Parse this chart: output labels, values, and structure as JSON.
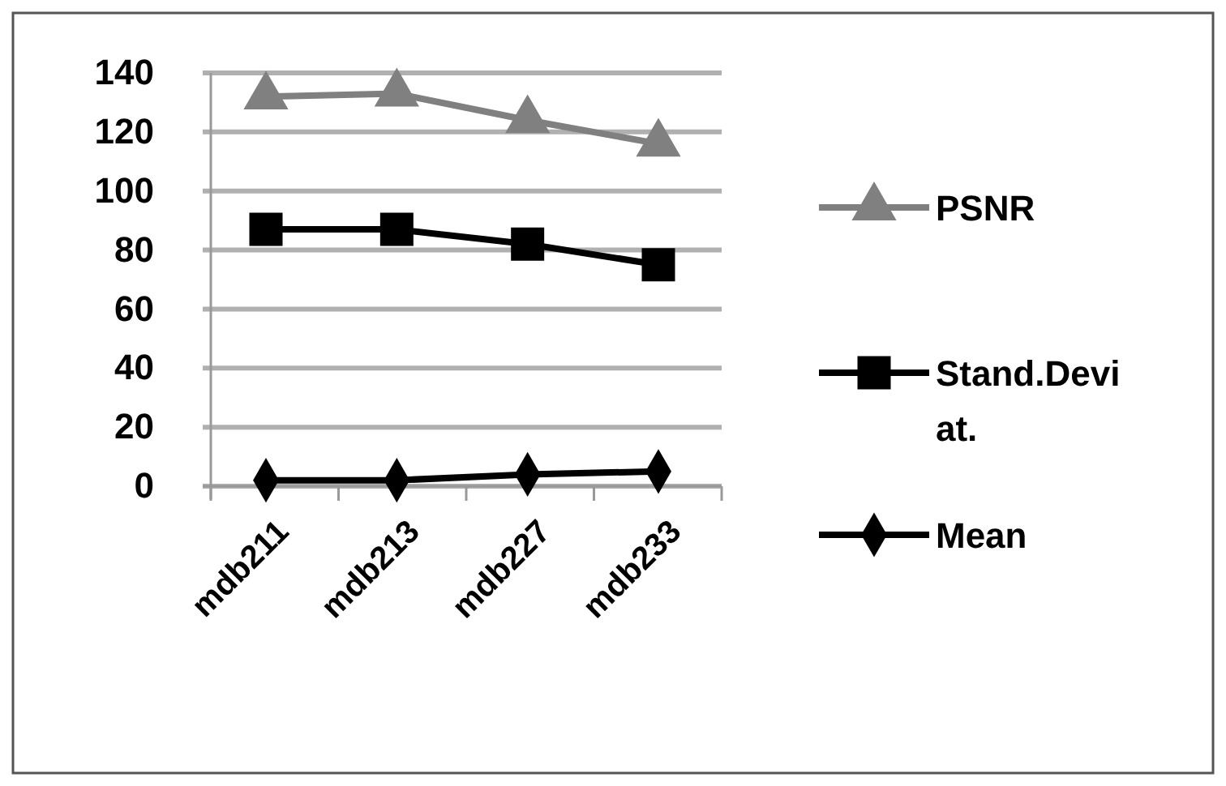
{
  "chart_data": {
    "type": "line",
    "categories": [
      "mdb211",
      "mdb213",
      "mdb227",
      "mdb233"
    ],
    "series": [
      {
        "name": "PSNR",
        "color": "#808080",
        "values": [
          132,
          133,
          124,
          116
        ],
        "marker": "triangle"
      },
      {
        "name": "Stand.Deviat.",
        "color": "#000000",
        "values": [
          87,
          87,
          82,
          75
        ],
        "marker": "square"
      },
      {
        "name": "Mean",
        "color": "#000000",
        "values": [
          2,
          2,
          4,
          5
        ],
        "marker": "diamond"
      }
    ],
    "ylim": [
      0,
      140
    ],
    "yticks": [
      0,
      20,
      40,
      60,
      80,
      100,
      120,
      140
    ],
    "grid": "y",
    "legend": "right"
  }
}
